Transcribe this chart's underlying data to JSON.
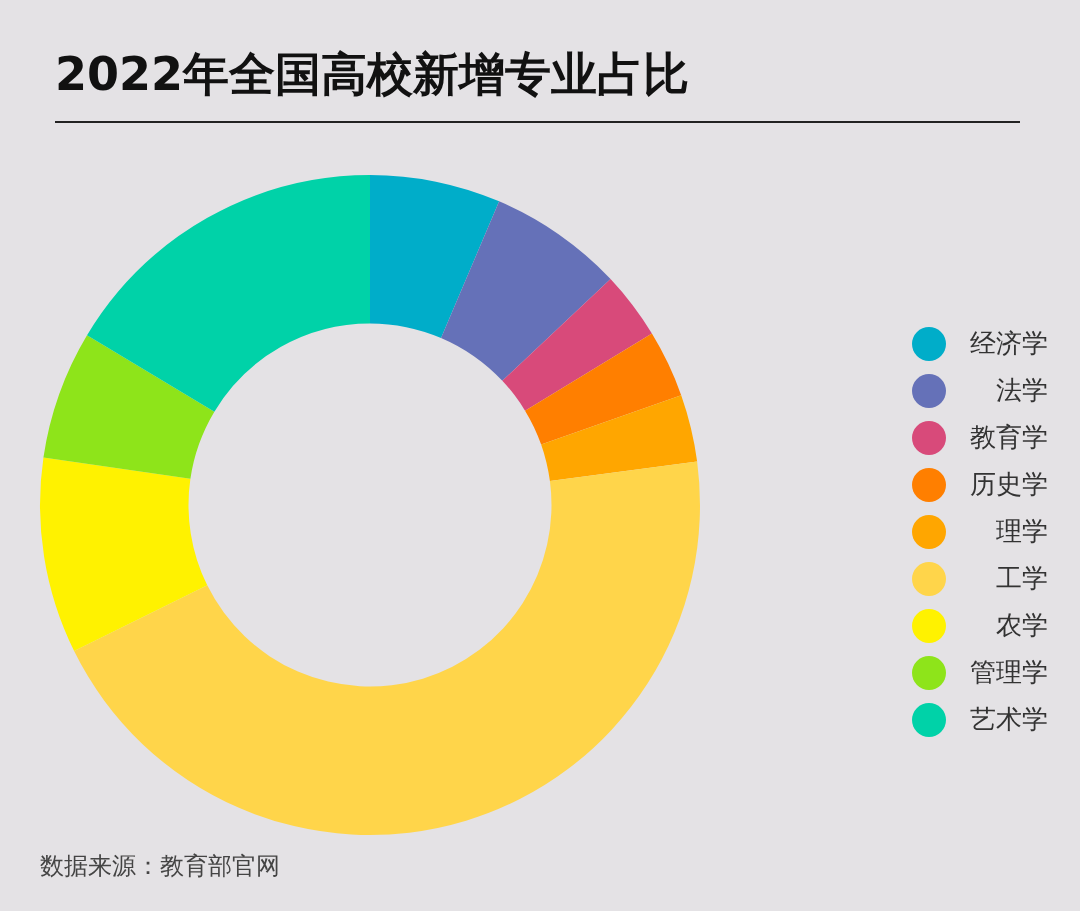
{
  "chart_data": {
    "type": "donut",
    "title": "2022年全国高校新增专业占比",
    "categories": [
      "经济学",
      "法学",
      "教育学",
      "历史学",
      "理学",
      "工学",
      "农学",
      "管理学",
      "艺术学"
    ],
    "values": [
      6.4,
      6.6,
      3.3,
      3.3,
      3.3,
      44.8,
      9.6,
      6.3,
      16.4
    ],
    "colors": [
      "#00adc9",
      "#6571b8",
      "#d84a7a",
      "#ff7f00",
      "#ffa600",
      "#ffd54a",
      "#fff200",
      "#8ee41a",
      "#00d2a8"
    ],
    "legend": "right",
    "annotations": [
      "数据来源：教育部官网"
    ]
  }
}
